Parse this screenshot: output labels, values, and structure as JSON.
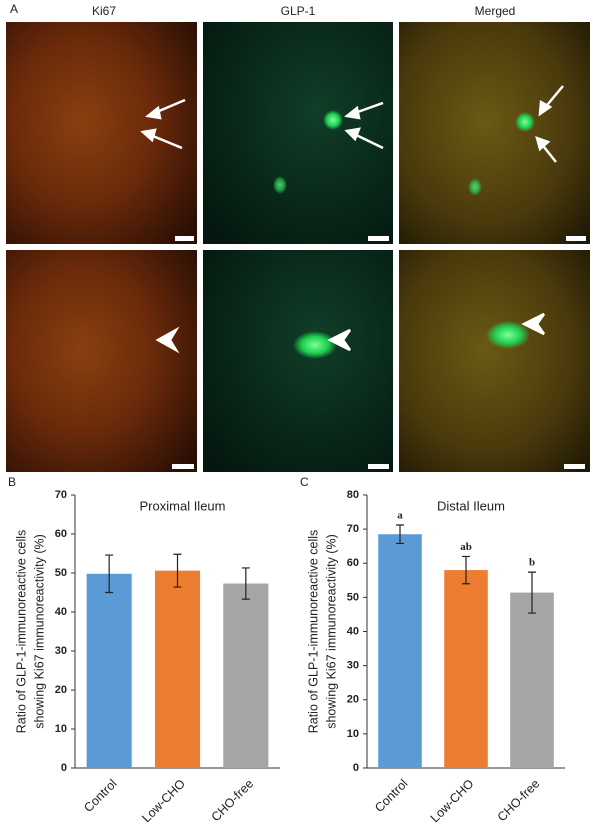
{
  "panel_a": {
    "label": "A",
    "columns": [
      "Ki67",
      "GLP-1",
      "Merged"
    ]
  },
  "chart_data": [
    {
      "type": "bar",
      "panel": "B",
      "title": "Proximal Ileum",
      "y_label": [
        "Ratio of GLP-1-immunoreactive cells",
        "showing Ki67 immunoreactivity (%)"
      ],
      "categories": [
        "Control",
        "Low-CHO",
        "CHO-free"
      ],
      "values": [
        49.8,
        50.6,
        47.3
      ],
      "errors": [
        4.8,
        4.2,
        4.0
      ],
      "colors": [
        "#5b9bd5",
        "#ed7d31",
        "#a5a5a5"
      ],
      "ylim": [
        0,
        70
      ],
      "yticks": [
        0,
        10,
        20,
        30,
        40,
        50,
        60,
        70
      ]
    },
    {
      "type": "bar",
      "panel": "C",
      "title": "Distal Ileum",
      "y_label": [
        "Ratio of GLP-1-immunoreactive cells",
        "showing Ki67 immunoreactivity (%)"
      ],
      "categories": [
        "Control",
        "Low-CHO",
        "CHO-free"
      ],
      "values": [
        68.5,
        58.0,
        51.4
      ],
      "errors": [
        2.7,
        4.0,
        6.0
      ],
      "annotations": [
        "a",
        "ab",
        "b"
      ],
      "colors": [
        "#5b9bd5",
        "#ed7d31",
        "#a5a5a5"
      ],
      "ylim": [
        0,
        80
      ],
      "yticks": [
        0,
        10,
        20,
        30,
        40,
        50,
        60,
        70,
        80
      ]
    }
  ]
}
